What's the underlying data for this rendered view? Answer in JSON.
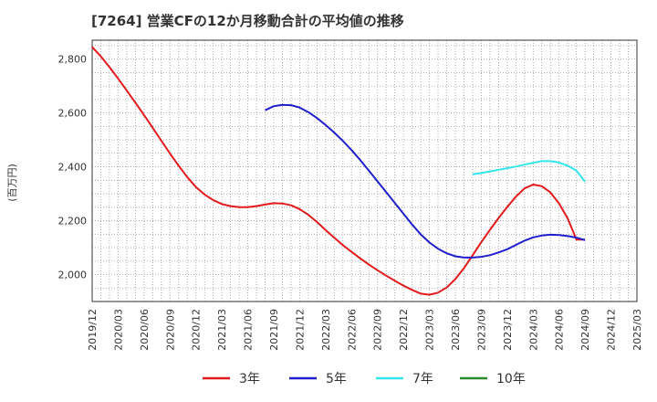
{
  "chart_data": {
    "type": "line",
    "title": "[7264]  営業CFの12か月移動合計の平均値の推移",
    "ylabel": "(百万円)",
    "xlabel": "",
    "ylim": [
      1900,
      2870
    ],
    "xlim": [
      "2019-12",
      "2025-03"
    ],
    "grid": true,
    "legend_position": "bottom",
    "y_ticks": [
      "2,000",
      "2,200",
      "2,400",
      "2,600",
      "2,800"
    ],
    "y_tick_values": [
      2000,
      2200,
      2400,
      2600,
      2800
    ],
    "x_ticks": [
      "2019/12",
      "2020/03",
      "2020/06",
      "2020/09",
      "2020/12",
      "2021/03",
      "2021/06",
      "2021/09",
      "2021/12",
      "2022/03",
      "2022/06",
      "2022/09",
      "2022/12",
      "2023/03",
      "2023/06",
      "2023/09",
      "2023/12",
      "2024/03",
      "2024/06",
      "2024/09",
      "2024/12",
      "2025/03"
    ],
    "series": [
      {
        "name": "3年",
        "color": "#e31a1c",
        "x": [
          "2019-12",
          "2020-01",
          "2020-02",
          "2020-03",
          "2020-04",
          "2020-05",
          "2020-06",
          "2020-07",
          "2020-08",
          "2020-09",
          "2020-10",
          "2020-11",
          "2020-12",
          "2021-01",
          "2021-02",
          "2021-03",
          "2021-04",
          "2021-05",
          "2021-06",
          "2021-07",
          "2021-08",
          "2021-09",
          "2021-10",
          "2021-11",
          "2021-12",
          "2022-01",
          "2022-02",
          "2022-03",
          "2022-04",
          "2022-05",
          "2022-06",
          "2022-07",
          "2022-08",
          "2022-09",
          "2022-10",
          "2022-11",
          "2022-12",
          "2023-01",
          "2023-02",
          "2023-03",
          "2023-04",
          "2023-05",
          "2023-06",
          "2023-07",
          "2023-08",
          "2023-09",
          "2023-10",
          "2023-11",
          "2023-12",
          "2024-01",
          "2024-02",
          "2024-03",
          "2024-04",
          "2024-05",
          "2024-06",
          "2024-07",
          "2024-08",
          "2024-09"
        ],
        "values": [
          2845,
          2810,
          2770,
          2728,
          2683,
          2638,
          2592,
          2545,
          2497,
          2449,
          2404,
          2362,
          2325,
          2297,
          2276,
          2262,
          2254,
          2250,
          2250,
          2254,
          2260,
          2265,
          2264,
          2257,
          2243,
          2222,
          2195,
          2165,
          2137,
          2109,
          2084,
          2060,
          2037,
          2016,
          1996,
          1977,
          1959,
          1943,
          1929,
          1925,
          1933,
          1952,
          1983,
          2024,
          2072,
          2120,
          2166,
          2210,
          2251,
          2289,
          2320,
          2334,
          2328,
          2305,
          2264,
          2208,
          2130,
          2130
        ],
        "drop_last": true
      },
      {
        "name": "5年",
        "color": "#1f1fcc",
        "x": [
          "2021-08",
          "2021-09",
          "2021-10",
          "2021-11",
          "2021-12",
          "2022-01",
          "2022-02",
          "2022-03",
          "2022-04",
          "2022-05",
          "2022-06",
          "2022-07",
          "2022-08",
          "2022-09",
          "2022-10",
          "2022-11",
          "2022-12",
          "2023-01",
          "2023-02",
          "2023-03",
          "2023-04",
          "2023-05",
          "2023-06",
          "2023-07",
          "2023-08",
          "2023-09",
          "2023-10",
          "2023-11",
          "2023-12",
          "2024-01",
          "2024-02",
          "2024-03",
          "2024-04",
          "2024-05",
          "2024-06",
          "2024-07",
          "2024-08",
          "2024-09"
        ],
        "values": [
          2610,
          2625,
          2630,
          2629,
          2620,
          2603,
          2581,
          2555,
          2527,
          2496,
          2462,
          2425,
          2386,
          2346,
          2306,
          2266,
          2226,
          2186,
          2149,
          2119,
          2096,
          2079,
          2068,
          2063,
          2063,
          2066,
          2072,
          2082,
          2094,
          2110,
          2126,
          2138,
          2145,
          2148,
          2147,
          2143,
          2137,
          2128
        ]
      },
      {
        "name": "7年",
        "color": "#33e6ee",
        "x": [
          "2023-08",
          "2023-09",
          "2023-10",
          "2023-11",
          "2023-12",
          "2024-01",
          "2024-02",
          "2024-03",
          "2024-04",
          "2024-05",
          "2024-06",
          "2024-07",
          "2024-08",
          "2024-09"
        ],
        "values": [
          2372,
          2377,
          2383,
          2389,
          2395,
          2401,
          2408,
          2415,
          2421,
          2421,
          2416,
          2404,
          2386,
          2345
        ]
      },
      {
        "name": "10年",
        "color": "#2a8c2a",
        "x": [],
        "values": []
      }
    ]
  }
}
